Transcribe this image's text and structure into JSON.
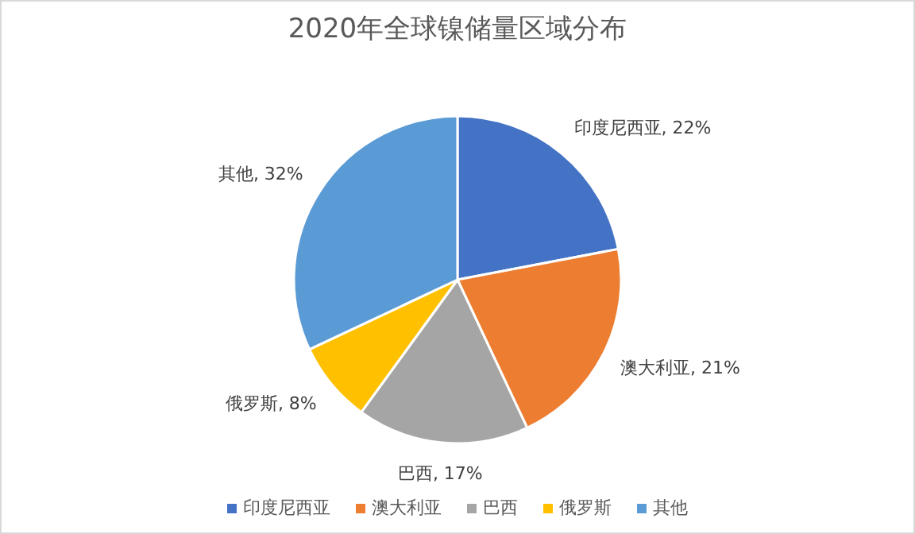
{
  "chart_data": {
    "type": "pie",
    "title": "2020年全球镍储量区域分布",
    "categories": [
      "印度尼西亚",
      "澳大利亚",
      "巴西",
      "俄罗斯",
      "其他"
    ],
    "values": [
      22,
      21,
      17,
      8,
      32
    ],
    "colors": [
      "#4472c4",
      "#ed7d31",
      "#a5a5a5",
      "#ffc000",
      "#5b9bd5"
    ],
    "value_labels": [
      "印度尼西亚, 22%",
      "澳大利亚, 21%",
      "巴西, 17%",
      "俄罗斯, 8%",
      "其他, 32%"
    ],
    "legend": "bottom"
  }
}
